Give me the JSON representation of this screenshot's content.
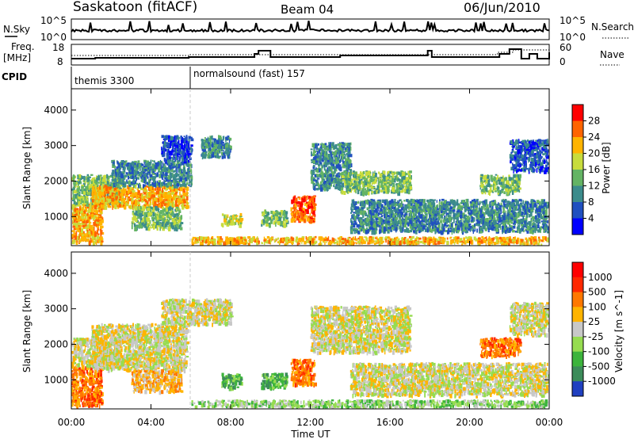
{
  "header": {
    "station": "Saskatoon (fitACF)",
    "beam": "Beam 04",
    "date": "06/Jun/2010"
  },
  "top_panels": {
    "nsky_label": "N.Sky",
    "nsky_ticks": [
      "10^5",
      "10^0"
    ],
    "nsearch_label": "N.Search",
    "freq_label_1": "Freq.",
    "freq_label_2": "[MHz]",
    "freq_ticks": [
      "18",
      "8"
    ],
    "nave_ticks": [
      "60",
      "0"
    ],
    "nave_label": "Nave",
    "cpid_label": "CPID",
    "cpid_segments": [
      {
        "name": "themis 3300",
        "start_hour": 0
      },
      {
        "name": "normalsound (fast) 157",
        "start_hour": 6
      }
    ]
  },
  "chart_data": [
    {
      "type": "heatmap",
      "name": "power",
      "ylabel": "Slant Range [km]",
      "ylim": [
        180,
        4600
      ],
      "yticks": [
        1000,
        2000,
        3000,
        4000
      ],
      "xlim": [
        0,
        24
      ],
      "colorbar_label": "Power [dB]",
      "colorbar_ticks": [
        "28",
        "24",
        "20",
        "16",
        "12",
        "8",
        "4"
      ],
      "colorbar_colors": [
        "#0000ff",
        "#2050c0",
        "#3c8c8c",
        "#64b464",
        "#c8dc3c",
        "#ffb400",
        "#ff6400",
        "#ff0000"
      ],
      "echo_regions": [
        {
          "t0": 0.0,
          "t1": 1.5,
          "r0": 300,
          "r1": 1400,
          "level": 5
        },
        {
          "t0": 0.0,
          "t1": 2.5,
          "r0": 1400,
          "r1": 2200,
          "level": 3
        },
        {
          "t0": 1.0,
          "t1": 5.8,
          "r0": 1300,
          "r1": 1900,
          "level": 5
        },
        {
          "t0": 2.0,
          "t1": 6.0,
          "r0": 1900,
          "r1": 2600,
          "level": 2
        },
        {
          "t0": 3.0,
          "t1": 5.5,
          "r0": 700,
          "r1": 1300,
          "level": 3
        },
        {
          "t0": 4.5,
          "t1": 6.0,
          "r0": 2600,
          "r1": 3300,
          "level": 1
        },
        {
          "t0": 6.5,
          "t1": 8.0,
          "r0": 2700,
          "r1": 3300,
          "level": 2
        },
        {
          "t0": 7.5,
          "t1": 8.5,
          "r0": 800,
          "r1": 1100,
          "level": 4
        },
        {
          "t0": 9.5,
          "t1": 10.8,
          "r0": 800,
          "r1": 1200,
          "level": 3
        },
        {
          "t0": 11.0,
          "t1": 12.2,
          "r0": 900,
          "r1": 1600,
          "level": 6
        },
        {
          "t0": 12.0,
          "t1": 14.0,
          "r0": 1800,
          "r1": 3100,
          "level": 2
        },
        {
          "t0": 13.5,
          "t1": 17.0,
          "r0": 1700,
          "r1": 2300,
          "level": 3
        },
        {
          "t0": 14.0,
          "t1": 24.0,
          "r0": 600,
          "r1": 1500,
          "level": 2
        },
        {
          "t0": 20.5,
          "t1": 22.5,
          "r0": 1700,
          "r1": 2200,
          "level": 3
        },
        {
          "t0": 22.0,
          "t1": 24.0,
          "r0": 2300,
          "r1": 3200,
          "level": 1
        },
        {
          "t0": 6.0,
          "t1": 24.0,
          "r0": 180,
          "r1": 450,
          "level": 5
        }
      ]
    },
    {
      "type": "heatmap",
      "name": "velocity",
      "ylabel": "Slant Range [km]",
      "ylim": [
        180,
        4600
      ],
      "yticks": [
        1000,
        2000,
        3000,
        4000
      ],
      "xlim": [
        0,
        24
      ],
      "xticks": [
        "00:00",
        "04:00",
        "08:00",
        "12:00",
        "16:00",
        "20:00",
        "00:00"
      ],
      "xlabel": "Time UT",
      "colorbar_label": "Velocity [m s^-1]",
      "colorbar_ticks": [
        "1000",
        "500",
        "100",
        "25",
        "-25",
        "-100",
        "-500",
        "-1000"
      ],
      "colorbar_colors": [
        "#2040c0",
        "#3c8c5a",
        "#3cb43c",
        "#96dc50",
        "#c8c8c8",
        "#ffb400",
        "#ff7800",
        "#ff2800",
        "#ff0000"
      ],
      "echo_regions": [
        {
          "t0": 0.0,
          "t1": 1.5,
          "r0": 300,
          "r1": 1400,
          "level": 6
        },
        {
          "t0": 0.0,
          "t1": 2.5,
          "r0": 1400,
          "r1": 2200,
          "level": 4
        },
        {
          "t0": 1.0,
          "t1": 5.8,
          "r0": 1300,
          "r1": 2600,
          "level": 4
        },
        {
          "t0": 3.0,
          "t1": 5.5,
          "r0": 700,
          "r1": 1300,
          "level": 5
        },
        {
          "t0": 4.5,
          "t1": 8.0,
          "r0": 2600,
          "r1": 3300,
          "level": 4
        },
        {
          "t0": 7.5,
          "t1": 8.5,
          "r0": 800,
          "r1": 1200,
          "level": 2
        },
        {
          "t0": 9.5,
          "t1": 10.8,
          "r0": 800,
          "r1": 1200,
          "level": 2
        },
        {
          "t0": 11.0,
          "t1": 12.2,
          "r0": 900,
          "r1": 1600,
          "level": 6
        },
        {
          "t0": 12.0,
          "t1": 17.0,
          "r0": 1800,
          "r1": 3100,
          "level": 4
        },
        {
          "t0": 14.0,
          "t1": 24.0,
          "r0": 600,
          "r1": 1500,
          "level": 4
        },
        {
          "t0": 20.5,
          "t1": 22.5,
          "r0": 1700,
          "r1": 2200,
          "level": 6
        },
        {
          "t0": 22.0,
          "t1": 24.0,
          "r0": 2300,
          "r1": 3200,
          "level": 4
        },
        {
          "t0": 6.0,
          "t1": 24.0,
          "r0": 180,
          "r1": 450,
          "level": 3
        }
      ]
    }
  ]
}
